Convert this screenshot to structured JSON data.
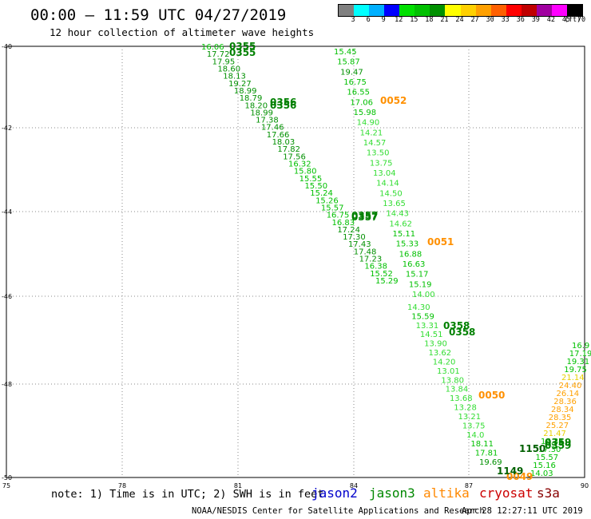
{
  "header": {
    "title": "00:00 – 11:59 UTC 04/27/2019",
    "subtitle": "12 hour collection of altimeter wave heights"
  },
  "legend": {
    "unit": "(ft)",
    "labels": [
      "3",
      "6",
      "9",
      "12",
      "15",
      "18",
      "21",
      "24",
      "27",
      "30",
      "33",
      "36",
      "39",
      "42",
      "45",
      "70"
    ],
    "colors": [
      "#808080",
      "#00ffff",
      "#00b0ff",
      "#0000ff",
      "#00e000",
      "#00c000",
      "#009000",
      "#ffff00",
      "#ffd000",
      "#ffa000",
      "#ff6000",
      "#ff0000",
      "#c00000",
      "#a000a0",
      "#ff00ff",
      "#000000"
    ]
  },
  "axes": {
    "x_labels": [
      "75",
      "78",
      "81",
      "84",
      "87",
      "90"
    ],
    "y_labels": [
      "-40",
      "-42",
      "-44",
      "-46",
      "-48",
      "-50"
    ]
  },
  "tracks": {
    "track_a": [
      "16.06",
      "17.72",
      "17.95",
      "18.60",
      "18.13",
      "19.27",
      "18.99",
      "18.79",
      "18.20",
      "18.99",
      "17.38",
      "17.46",
      "17.66",
      "18.03",
      "17.82",
      "17.56",
      "16.32",
      "15.80",
      "15.55",
      "15.50",
      "15.24",
      "15.26",
      "15.57",
      "16.75",
      "16.83",
      "17.24",
      "17.30",
      "17.43",
      "17.48",
      "17.23",
      "16.38",
      "15.52",
      "15.29"
    ],
    "track_b": [
      "15.45",
      "15.87",
      "19.47",
      "16.75",
      "16.55",
      "17.06",
      "15.98",
      "14.90",
      "14.21",
      "14.57",
      "13.50",
      "13.75",
      "13.04",
      "14.14",
      "14.50",
      "13.65",
      "14.43",
      "14.62",
      "15.11",
      "15.33",
      "16.88",
      "16.63",
      "15.17",
      "15.19",
      "14.00"
    ],
    "track_c": [
      "14.30",
      "15.59",
      "13.31",
      "14.51",
      "13.90",
      "13.62",
      "14.20",
      "13.01",
      "13.80",
      "13.84",
      "13.68",
      "13.28",
      "13.21",
      "13.75",
      "14.0",
      "18.11",
      "17.81",
      "19.69"
    ],
    "track_d": [
      "16.9",
      "17.19",
      "19.31",
      "19.75",
      "21.14",
      "24.40",
      "26.14",
      "28.36",
      "28.34",
      "28.35",
      "25.27",
      "21.47",
      "16.34",
      "17.30",
      "15.57",
      "15.16",
      "14.03"
    ],
    "pass_labels": {
      "p0355": "0355",
      "p0356": "0356",
      "p0357": "0357",
      "p0358": "0358",
      "p0359": "0359",
      "p0052": "0052",
      "p0051": "0051",
      "p0050": "0050",
      "p0049": "0049",
      "p1149": "1149",
      "p1150": "1150"
    }
  },
  "footer": {
    "note": "note: 1) Time is in UTC; 2) SWH is in feet",
    "missions": [
      {
        "name": "jason2",
        "color": "#0000cc"
      },
      {
        "name": "jason3",
        "color": "#008800"
      },
      {
        "name": "altika",
        "color": "#ff8800"
      },
      {
        "name": "cryosat",
        "color": "#cc0000"
      },
      {
        "name": "s3a",
        "color": "#880000"
      }
    ],
    "credit": "NOAA/NESDIS Center for Satellite Applications and Research",
    "timestamp": "Apr 28 12:27:11 UTC 2019"
  }
}
